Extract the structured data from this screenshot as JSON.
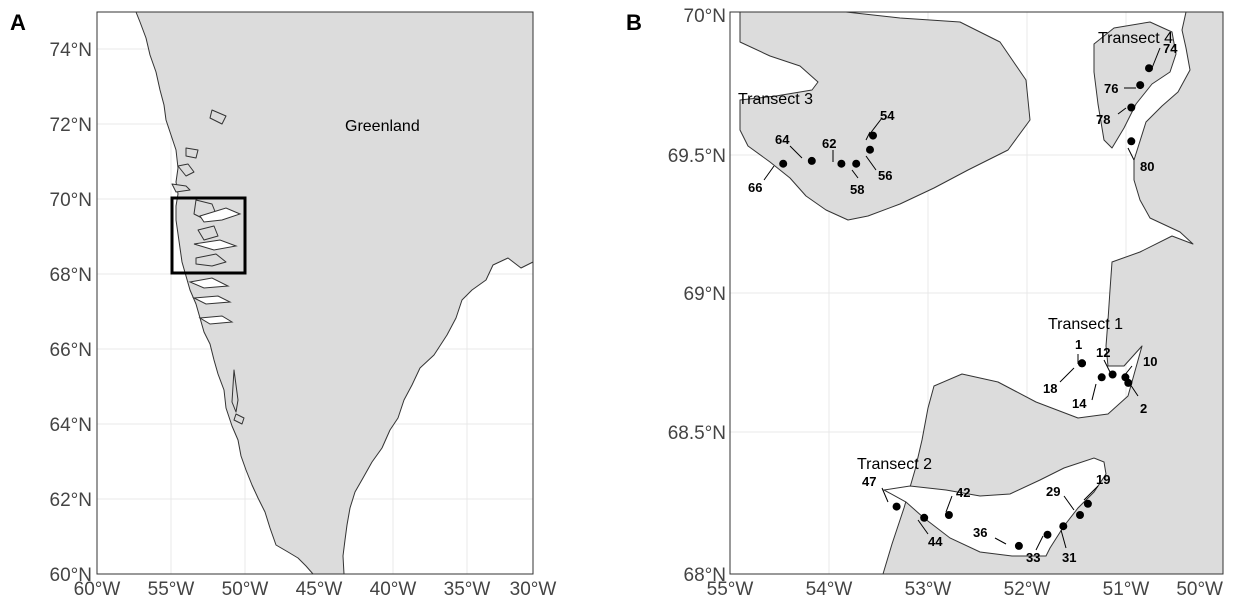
{
  "panels": {
    "A": {
      "letter": "A",
      "lon_labels": [
        "60°W",
        "55°W",
        "50°W",
        "45°W",
        "40°W",
        "35°W",
        "30°W"
      ],
      "lat_labels": [
        "60°N",
        "62°N",
        "64°N",
        "66°N",
        "68°N",
        "70°N",
        "72°N",
        "74°N"
      ],
      "place_label": "Greenland",
      "inset_box": {
        "lon": [
          -55,
          -50
        ],
        "lat": [
          68,
          70
        ]
      }
    },
    "B": {
      "letter": "B",
      "lon_labels": [
        "55°W",
        "54°W",
        "53°W",
        "52°W",
        "51°W",
        "50°W"
      ],
      "lat_labels": [
        "68°N",
        "68.5°N",
        "69°N",
        "69.5°N",
        "70°N"
      ],
      "transects": [
        "Transect 1",
        "Transect 2",
        "Transect 3",
        "Transect 4"
      ],
      "stations": [
        {
          "label": "1",
          "lon": -51.43,
          "lat": 68.75
        },
        {
          "label": "2",
          "lon": -50.96,
          "lat": 68.68
        },
        {
          "label": "10",
          "lon": -50.99,
          "lat": 68.7
        },
        {
          "label": "12",
          "lon": -51.12,
          "lat": 68.71
        },
        {
          "label": "14",
          "lon": -51.23,
          "lat": 68.7
        },
        {
          "label": "18",
          "lon": -51.43,
          "lat": 68.75
        },
        {
          "label": "19",
          "lon": -51.37,
          "lat": 68.25
        },
        {
          "label": "29",
          "lon": -51.45,
          "lat": 68.21
        },
        {
          "label": "31",
          "lon": -51.62,
          "lat": 68.17
        },
        {
          "label": "33",
          "lon": -51.78,
          "lat": 68.14
        },
        {
          "label": "36",
          "lon": -52.07,
          "lat": 68.1
        },
        {
          "label": "42",
          "lon": -52.78,
          "lat": 68.21
        },
        {
          "label": "44",
          "lon": -53.03,
          "lat": 68.2
        },
        {
          "label": "47",
          "lon": -53.31,
          "lat": 68.24
        },
        {
          "label": "54",
          "lon": -53.55,
          "lat": 69.56
        },
        {
          "label": "56",
          "lon": -53.58,
          "lat": 69.51
        },
        {
          "label": "58",
          "lon": -53.72,
          "lat": 69.46
        },
        {
          "label": "62",
          "lon": -53.87,
          "lat": 69.46
        },
        {
          "label": "64",
          "lon": -54.17,
          "lat": 69.47
        },
        {
          "label": "66",
          "lon": -54.46,
          "lat": 69.46
        },
        {
          "label": "74",
          "lon": -50.75,
          "lat": 69.8
        },
        {
          "label": "76",
          "lon": -50.84,
          "lat": 69.74
        },
        {
          "label": "78",
          "lon": -50.93,
          "lat": 69.66
        },
        {
          "label": "80",
          "lon": -50.93,
          "lat": 69.54
        }
      ]
    }
  }
}
